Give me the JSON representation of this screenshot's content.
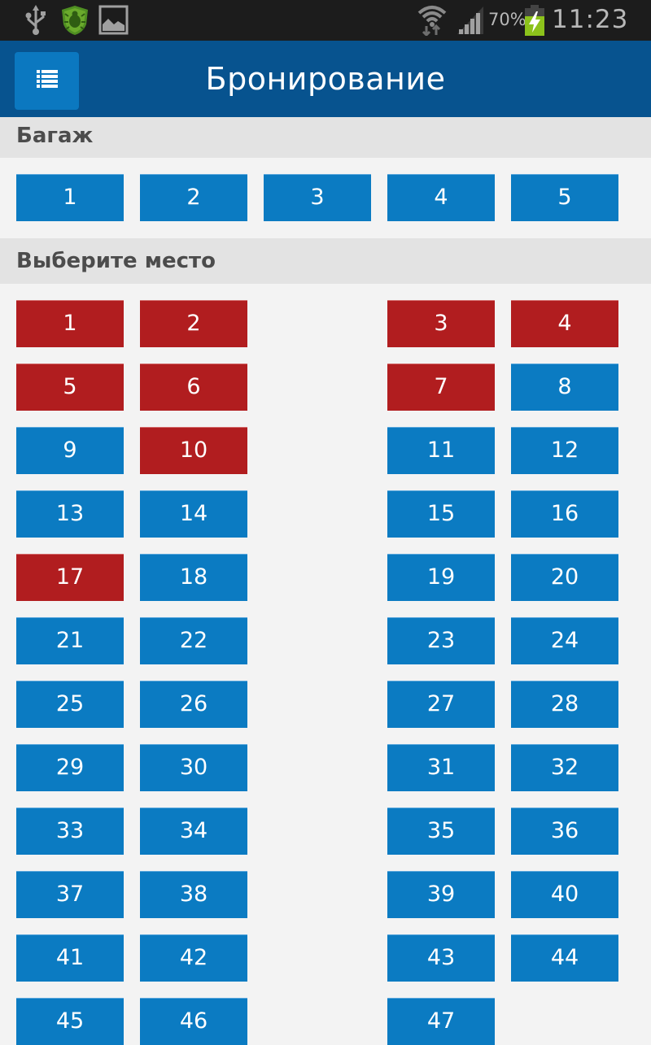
{
  "status_bar": {
    "icons": [
      "usb-icon",
      "antivirus-shield-icon",
      "gallery-image-icon",
      "wifi-icon",
      "signal-icon",
      "battery-charging-icon"
    ],
    "battery": "70%",
    "time": "11:23"
  },
  "app_bar": {
    "menu_icon": "list-menu-icon",
    "title": "Бронирование"
  },
  "colors": {
    "app_bar": "#07538f",
    "free": "#0b7bc2",
    "taken": "#b11d1f",
    "section_bg": "#e3e3e3",
    "page_bg": "#f3f3f3"
  },
  "baggage": {
    "title": "Багаж",
    "options": [
      "1",
      "2",
      "3",
      "4",
      "5"
    ]
  },
  "seats": {
    "title": "Выберите место",
    "legend": {
      "free": "available",
      "taken": "occupied"
    },
    "rows": [
      [
        {
          "n": "1",
          "s": "taken"
        },
        {
          "n": "2",
          "s": "taken"
        },
        {
          "n": "3",
          "s": "taken"
        },
        {
          "n": "4",
          "s": "taken"
        }
      ],
      [
        {
          "n": "5",
          "s": "taken"
        },
        {
          "n": "6",
          "s": "taken"
        },
        {
          "n": "7",
          "s": "taken"
        },
        {
          "n": "8",
          "s": "free"
        }
      ],
      [
        {
          "n": "9",
          "s": "free"
        },
        {
          "n": "10",
          "s": "taken"
        },
        {
          "n": "11",
          "s": "free"
        },
        {
          "n": "12",
          "s": "free"
        }
      ],
      [
        {
          "n": "13",
          "s": "free"
        },
        {
          "n": "14",
          "s": "free"
        },
        {
          "n": "15",
          "s": "free"
        },
        {
          "n": "16",
          "s": "free"
        }
      ],
      [
        {
          "n": "17",
          "s": "taken"
        },
        {
          "n": "18",
          "s": "free"
        },
        {
          "n": "19",
          "s": "free"
        },
        {
          "n": "20",
          "s": "free"
        }
      ],
      [
        {
          "n": "21",
          "s": "free"
        },
        {
          "n": "22",
          "s": "free"
        },
        {
          "n": "23",
          "s": "free"
        },
        {
          "n": "24",
          "s": "free"
        }
      ],
      [
        {
          "n": "25",
          "s": "free"
        },
        {
          "n": "26",
          "s": "free"
        },
        {
          "n": "27",
          "s": "free"
        },
        {
          "n": "28",
          "s": "free"
        }
      ],
      [
        {
          "n": "29",
          "s": "free"
        },
        {
          "n": "30",
          "s": "free"
        },
        {
          "n": "31",
          "s": "free"
        },
        {
          "n": "32",
          "s": "free"
        }
      ],
      [
        {
          "n": "33",
          "s": "free"
        },
        {
          "n": "34",
          "s": "free"
        },
        {
          "n": "35",
          "s": "free"
        },
        {
          "n": "36",
          "s": "free"
        }
      ],
      [
        {
          "n": "37",
          "s": "free"
        },
        {
          "n": "38",
          "s": "free"
        },
        {
          "n": "39",
          "s": "free"
        },
        {
          "n": "40",
          "s": "free"
        }
      ],
      [
        {
          "n": "41",
          "s": "free"
        },
        {
          "n": "42",
          "s": "free"
        },
        {
          "n": "43",
          "s": "free"
        },
        {
          "n": "44",
          "s": "free"
        }
      ],
      [
        {
          "n": "45",
          "s": "free"
        },
        {
          "n": "46",
          "s": "free"
        },
        {
          "n": "47",
          "s": "free"
        }
      ]
    ]
  }
}
